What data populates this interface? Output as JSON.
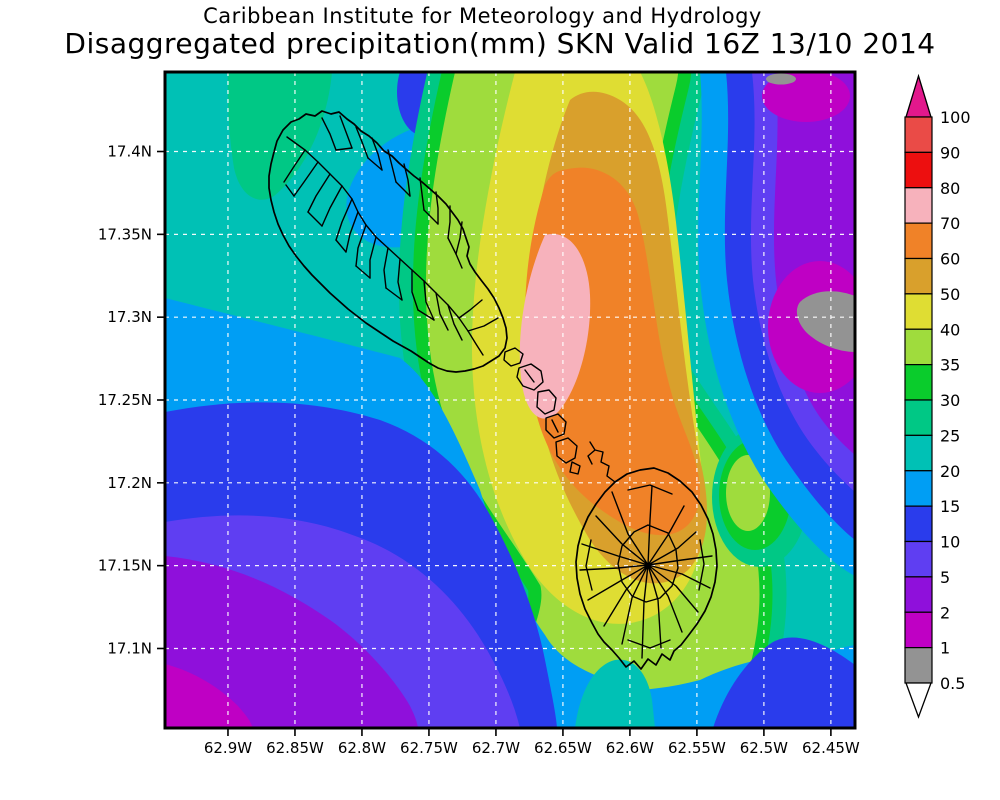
{
  "title": {
    "line1": "Caribbean Institute for Meteorology and Hydrology",
    "line2": "Disaggregated precipitation(mm) SKN Valid 16Z 13/10 2014"
  },
  "axes": {
    "lat_ticks": [
      {
        "label": "17.4N",
        "value": 17.4
      },
      {
        "label": "17.35N",
        "value": 17.35
      },
      {
        "label": "17.3N",
        "value": 17.3
      },
      {
        "label": "17.25N",
        "value": 17.25
      },
      {
        "label": "17.2N",
        "value": 17.2
      },
      {
        "label": "17.15N",
        "value": 17.15
      },
      {
        "label": "17.1N",
        "value": 17.1
      }
    ],
    "lon_ticks": [
      {
        "label": "62.9W",
        "value": 62.9
      },
      {
        "label": "62.85W",
        "value": 62.85
      },
      {
        "label": "62.8W",
        "value": 62.8
      },
      {
        "label": "62.75W",
        "value": 62.75
      },
      {
        "label": "62.7W",
        "value": 62.7
      },
      {
        "label": "62.65W",
        "value": 62.65
      },
      {
        "label": "62.6W",
        "value": 62.6
      },
      {
        "label": "62.55W",
        "value": 62.55
      },
      {
        "label": "62.5W",
        "value": 62.5
      },
      {
        "label": "62.45W",
        "value": 62.45
      }
    ],
    "lat_top": 17.448,
    "lat_bottom": 17.052,
    "lon_left": 62.947,
    "lon_right": 62.432
  },
  "colorbar": {
    "labels": [
      "100",
      "90",
      "80",
      "70",
      "60",
      "50",
      "40",
      "35",
      "30",
      "25",
      "20",
      "15",
      "10",
      "5",
      "2",
      "1",
      "0.5"
    ],
    "segment_colors": [
      "#EA4B47",
      "#ED0F0F",
      "#F7B2BC",
      "#F08228",
      "#D9A02C",
      "#DFDD33",
      "#9FDC3D",
      "#0ACC2C",
      "#00C885",
      "#00C1B5",
      "#009EF4",
      "#2A3CEC",
      "#5F3EF2",
      "#8F10DB",
      "#BF00C4",
      "#939393"
    ],
    "arrow_top_color": "#E2188C",
    "arrow_bottom_color": "#FFFFFF"
  },
  "palette": {
    "gt100": "#E2188C",
    "r90_100": "#EA4B47",
    "r80_90": "#ED0F0F",
    "r70_80": "#F7B2BC",
    "r60_70": "#F08228",
    "r50_60": "#D9A02C",
    "r40_50": "#DFDD33",
    "r35_40": "#9FDC3D",
    "r30_35": "#0ACC2C",
    "r25_30": "#00C885",
    "r20_25": "#00C1B5",
    "r15_20": "#009EF4",
    "r10_15": "#2A3CEC",
    "r5_10": "#5F3EF2",
    "r2_5": "#8F10DB",
    "r1_2": "#BF00C4",
    "r05_1": "#939393",
    "lt05": "#FFFFFF",
    "coastline": "#000000",
    "gridline": "#FFFFFF",
    "frame": "#000000"
  },
  "chart_data": {
    "type": "filled-contour-map",
    "title": "Caribbean Institute for Meteorology and Hydrology",
    "subtitle": "Disaggregated precipitation(mm) SKN Valid 16Z 13/10 2014",
    "variable": "precipitation",
    "units": "mm",
    "valid_time": "16Z 13/10 2014",
    "domain_label": "SKN",
    "x_axis_ticks": [
      "62.9W",
      "62.85W",
      "62.8W",
      "62.75W",
      "62.7W",
      "62.65W",
      "62.6W",
      "62.55W",
      "62.5W",
      "62.45W"
    ],
    "y_axis_ticks": [
      "17.4N",
      "17.35N",
      "17.3N",
      "17.25N",
      "17.2N",
      "17.15N",
      "17.1N"
    ],
    "lon_range_deg_w": [
      62.947,
      62.432
    ],
    "lat_range_deg_n": [
      17.052,
      17.448
    ],
    "grid_spacing_deg": 0.05,
    "gridlines": "white dashed at every labeled tick",
    "contour_levels_mm": [
      0.5,
      1,
      2,
      5,
      10,
      15,
      20,
      25,
      30,
      35,
      40,
      50,
      60,
      70,
      80,
      90,
      100
    ],
    "colorbar_orientation": "vertical-right with over/under arrow caps",
    "field_summary": [
      {
        "feature": "maximum",
        "range_mm": "70-80",
        "location": "pink core near 62.66W, 17.26N-17.33N between the two islands"
      },
      {
        "feature": "high ridge",
        "range_mm": "40-70",
        "location": "NNE-SSW band from top-center across both island outlines to south of Nevis"
      },
      {
        "feature": "background west",
        "range_mm": "20-25",
        "location": "teal area over northwest quadrant around larger island"
      },
      {
        "feature": "low trough",
        "range_mm": "1-5",
        "location": "purple band along east edge and northeast corner"
      },
      {
        "feature": "minimum",
        "range_mm": "0.5-1",
        "location": "gray patches at east edge near 17.28N and at top edge near 62.66W"
      },
      {
        "feature": "southwest corner",
        "range_mm": "0.5-10",
        "location": "magenta/purple/violet wedge at bottom-left corner"
      }
    ]
  }
}
